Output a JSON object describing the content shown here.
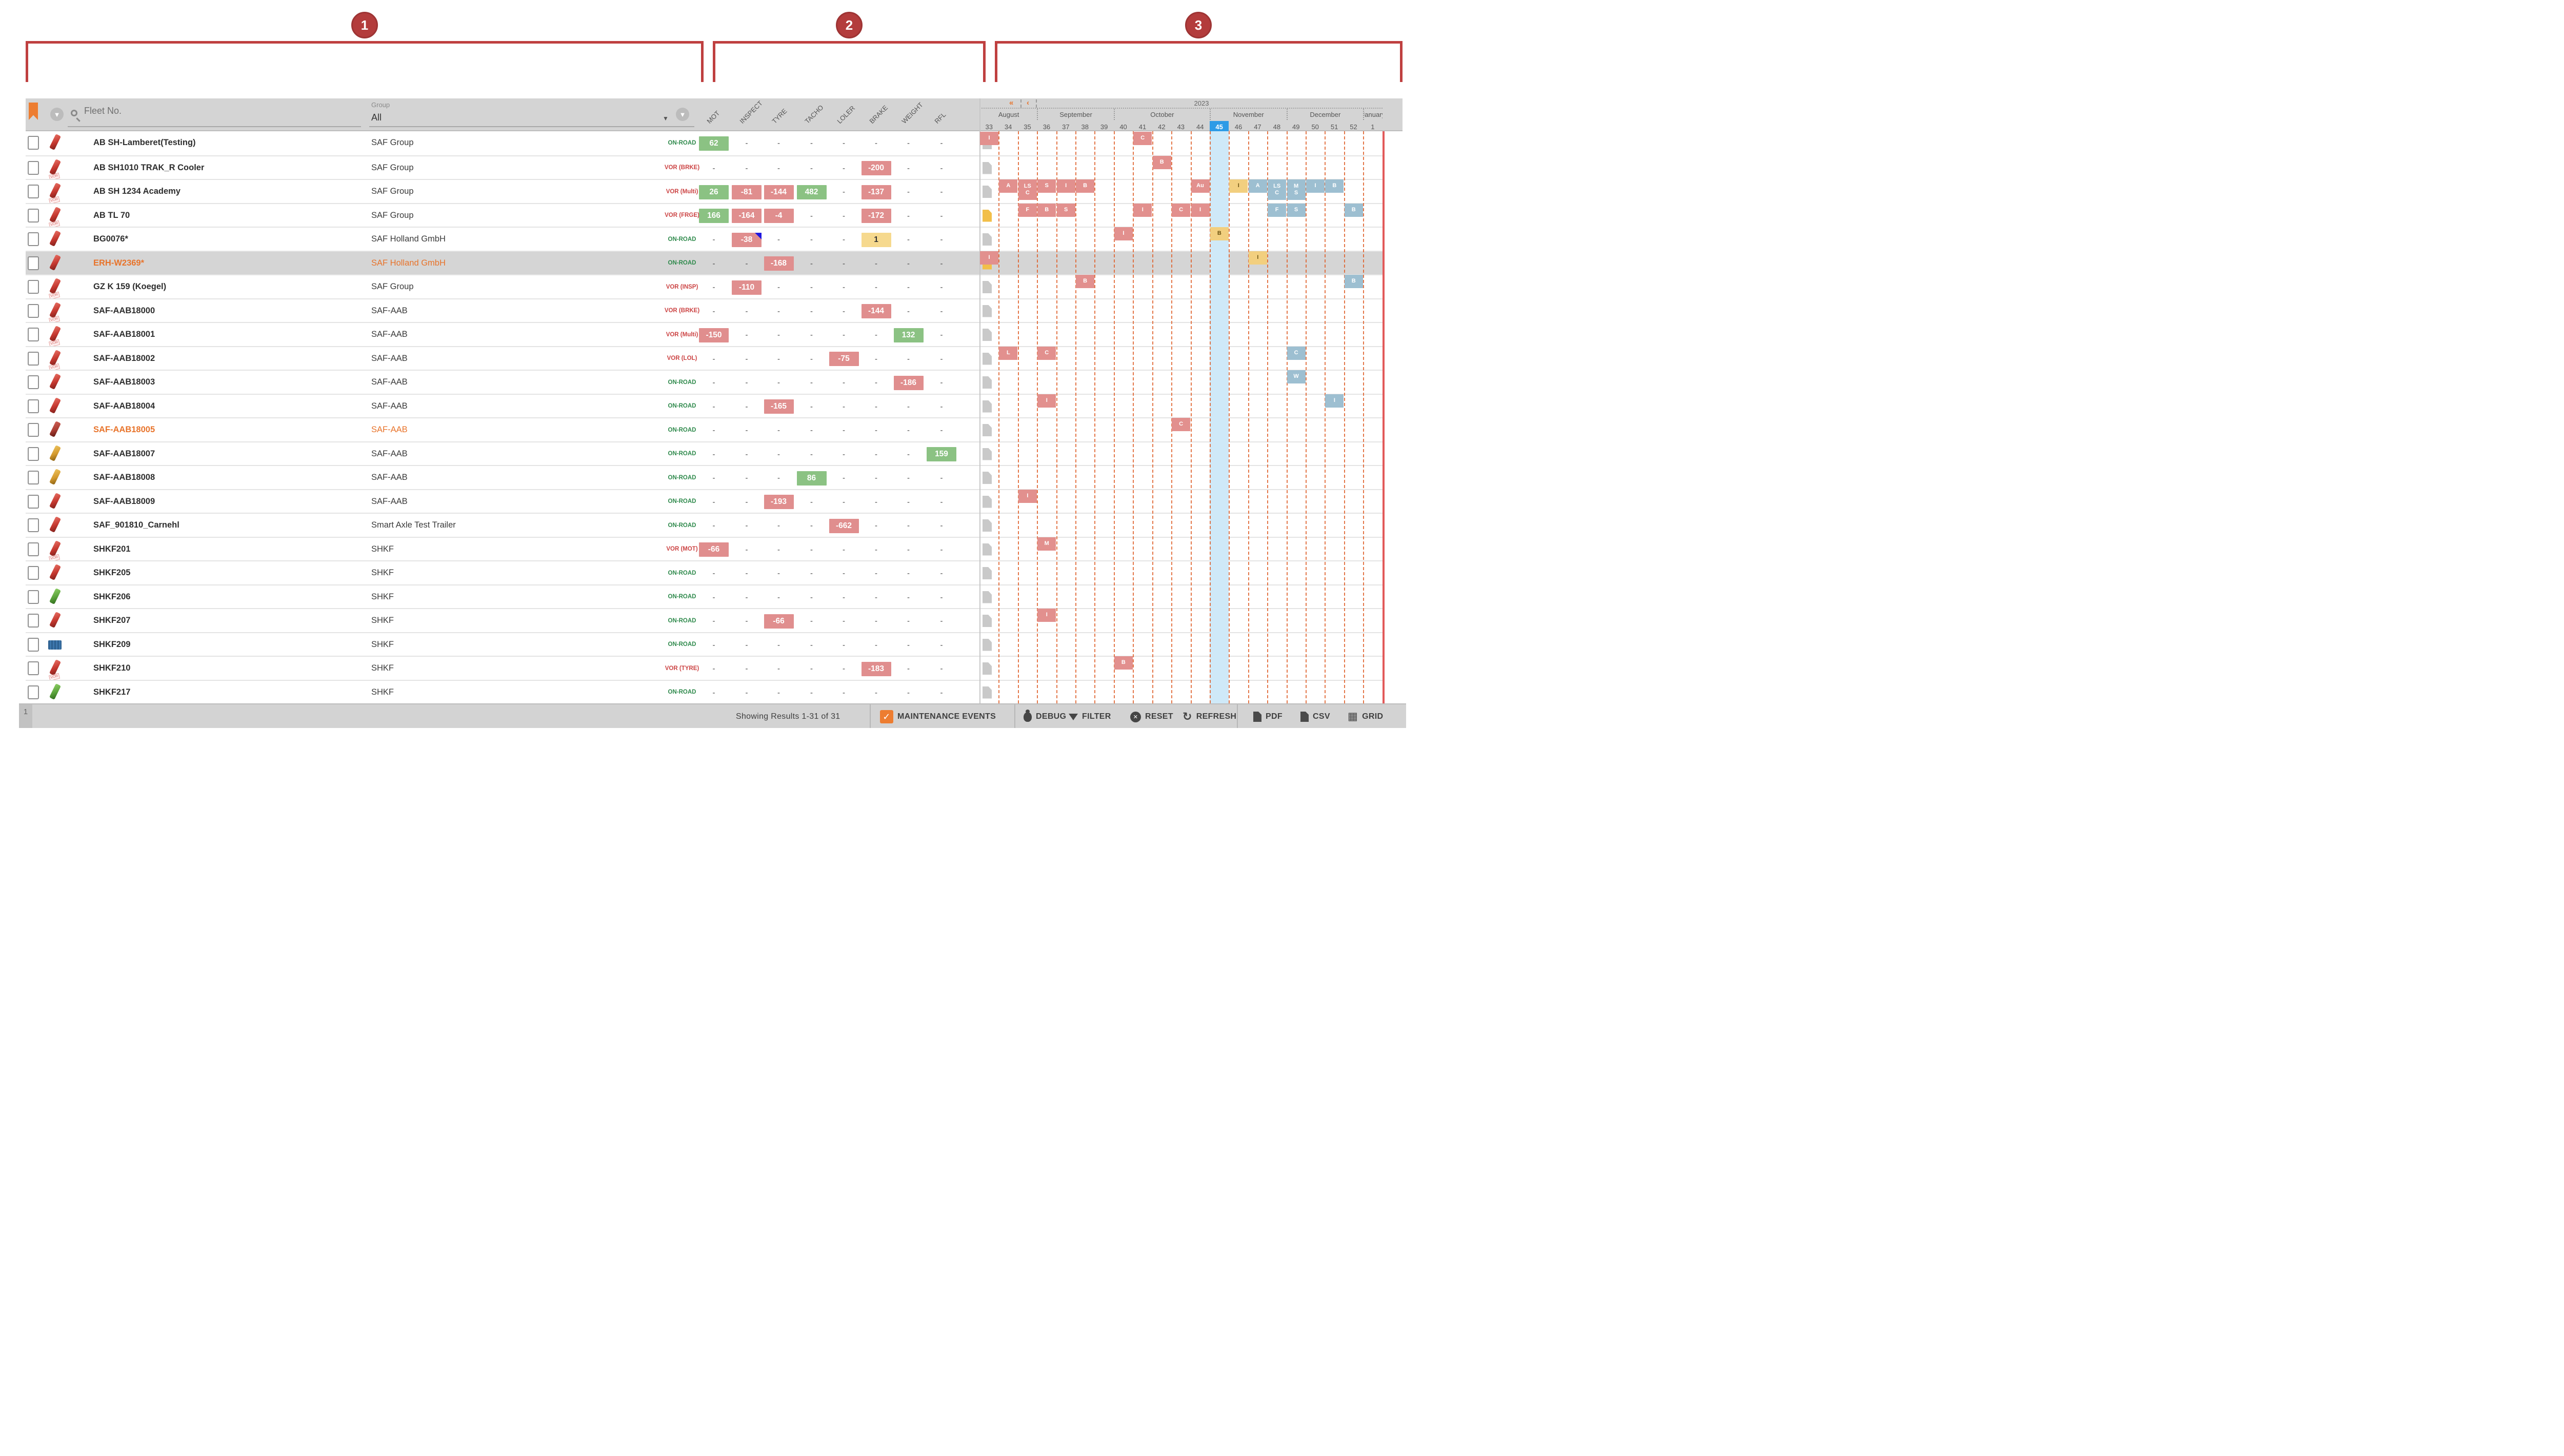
{
  "annotations": {
    "labels": [
      "1",
      "2",
      "3"
    ],
    "color": "#bf4040"
  },
  "table": {
    "search_placeholder": "Fleet No.",
    "group_label": "Group",
    "group_value": "All",
    "status_columns": [
      "MOT",
      "INSPECT",
      "TYRE",
      "TACHO",
      "LOLER",
      "BRAKE",
      "WEIGHT",
      "RFL"
    ],
    "rows": [
      {
        "n": "AB SH-Lamberet(Testing)",
        "g": "SAF Group",
        "s": "ON-ROAD",
        "icon": "red",
        "stamp": false,
        "doc": "gray",
        "sel": false,
        "flag": false,
        "v": [
          {
            "v": "62",
            "c": "g"
          },
          null,
          null,
          null,
          null,
          null,
          null,
          null
        ]
      },
      {
        "n": "AB SH1010 TRAK_R Cooler",
        "g": "SAF Group",
        "s": "VOR (BRKE)",
        "icon": "red",
        "stamp": true,
        "doc": "gray",
        "sel": false,
        "flag": false,
        "v": [
          null,
          null,
          null,
          null,
          null,
          {
            "v": "-200",
            "c": "r"
          },
          null,
          null
        ]
      },
      {
        "n": "AB SH 1234 Academy",
        "g": "SAF Group",
        "s": "VOR (Multi)",
        "icon": "red",
        "stamp": true,
        "doc": "gray",
        "sel": false,
        "flag": false,
        "v": [
          {
            "v": "26",
            "c": "g"
          },
          {
            "v": "-81",
            "c": "r"
          },
          {
            "v": "-144",
            "c": "r"
          },
          {
            "v": "482",
            "c": "g"
          },
          null,
          {
            "v": "-137",
            "c": "r"
          },
          null,
          null
        ]
      },
      {
        "n": "AB TL 70",
        "g": "SAF Group",
        "s": "VOR (FRGE)",
        "icon": "red",
        "stamp": true,
        "doc": "yellow",
        "sel": false,
        "flag": false,
        "v": [
          {
            "v": "166",
            "c": "g"
          },
          {
            "v": "-164",
            "c": "r"
          },
          {
            "v": "-4",
            "c": "r"
          },
          null,
          null,
          {
            "v": "-172",
            "c": "r"
          },
          null,
          null
        ]
      },
      {
        "n": "BG0076*",
        "g": "SAF Holland GmbH",
        "s": "ON-ROAD",
        "icon": "red",
        "stamp": false,
        "doc": "gray",
        "sel": false,
        "flag": false,
        "v": [
          null,
          {
            "v": "-38",
            "c": "r",
            "flag": true
          },
          null,
          null,
          null,
          {
            "v": "1",
            "c": "y"
          },
          null,
          null
        ]
      },
      {
        "n": "ERH-W2369*",
        "g": "SAF Holland GmbH",
        "s": "ON-ROAD",
        "icon": "red",
        "stamp": false,
        "doc": "yellow",
        "sel": true,
        "flag": true,
        "v": [
          null,
          null,
          {
            "v": "-168",
            "c": "r"
          },
          null,
          null,
          null,
          null,
          null
        ]
      },
      {
        "n": "GZ K 159 (Koegel)",
        "g": "SAF Group",
        "s": "VOR (INSP)",
        "icon": "red",
        "stamp": true,
        "doc": "gray",
        "sel": false,
        "flag": false,
        "v": [
          null,
          {
            "v": "-110",
            "c": "r"
          },
          null,
          null,
          null,
          null,
          null,
          null
        ]
      },
      {
        "n": "SAF-AAB18000",
        "g": "SAF-AAB",
        "s": "VOR (BRKE)",
        "icon": "red",
        "stamp": true,
        "doc": "gray",
        "sel": false,
        "flag": false,
        "v": [
          null,
          null,
          null,
          null,
          null,
          {
            "v": "-144",
            "c": "r"
          },
          null,
          null
        ]
      },
      {
        "n": "SAF-AAB18001",
        "g": "SAF-AAB",
        "s": "VOR (Multi)",
        "icon": "red",
        "stamp": true,
        "doc": "gray",
        "sel": false,
        "flag": false,
        "v": [
          {
            "v": "-150",
            "c": "r"
          },
          null,
          null,
          null,
          null,
          null,
          {
            "v": "132",
            "c": "g"
          },
          null
        ]
      },
      {
        "n": "SAF-AAB18002",
        "g": "SAF-AAB",
        "s": "VOR (LOL)",
        "icon": "red",
        "stamp": true,
        "doc": "gray",
        "sel": false,
        "flag": false,
        "v": [
          null,
          null,
          null,
          null,
          {
            "v": "-75",
            "c": "r"
          },
          null,
          null,
          null
        ]
      },
      {
        "n": "SAF-AAB18003",
        "g": "SAF-AAB",
        "s": "ON-ROAD",
        "icon": "red",
        "stamp": false,
        "doc": "gray",
        "sel": false,
        "flag": false,
        "v": [
          null,
          null,
          null,
          null,
          null,
          null,
          {
            "v": "-186",
            "c": "r"
          },
          null
        ]
      },
      {
        "n": "SAF-AAB18004",
        "g": "SAF-AAB",
        "s": "ON-ROAD",
        "icon": "red",
        "stamp": false,
        "doc": "gray",
        "sel": false,
        "flag": false,
        "v": [
          null,
          null,
          {
            "v": "-165",
            "c": "r"
          },
          null,
          null,
          null,
          null,
          null
        ]
      },
      {
        "n": "SAF-AAB18005",
        "g": "SAF-AAB",
        "s": "ON-ROAD",
        "icon": "darkred",
        "stamp": false,
        "doc": "gray",
        "sel": false,
        "flag": true,
        "v": [
          null,
          null,
          null,
          null,
          null,
          null,
          null,
          null
        ]
      },
      {
        "n": "SAF-AAB18007",
        "g": "SAF-AAB",
        "s": "ON-ROAD",
        "icon": "yellow",
        "stamp": false,
        "doc": "gray",
        "sel": false,
        "flag": false,
        "v": [
          null,
          null,
          null,
          null,
          null,
          null,
          null,
          {
            "v": "159",
            "c": "g"
          }
        ]
      },
      {
        "n": "SAF-AAB18008",
        "g": "SAF-AAB",
        "s": "ON-ROAD",
        "icon": "yellow",
        "stamp": false,
        "doc": "gray",
        "sel": false,
        "flag": false,
        "v": [
          null,
          null,
          null,
          {
            "v": "86",
            "c": "g"
          },
          null,
          null,
          null,
          null
        ]
      },
      {
        "n": "SAF-AAB18009",
        "g": "SAF-AAB",
        "s": "ON-ROAD",
        "icon": "red",
        "stamp": false,
        "doc": "gray",
        "sel": false,
        "flag": false,
        "v": [
          null,
          null,
          {
            "v": "-193",
            "c": "r"
          },
          null,
          null,
          null,
          null,
          null
        ]
      },
      {
        "n": "SAF_901810_Carnehl",
        "g": "Smart Axle Test Trailer",
        "s": "ON-ROAD",
        "icon": "red",
        "stamp": false,
        "doc": "gray",
        "sel": false,
        "flag": false,
        "v": [
          null,
          null,
          null,
          null,
          {
            "v": "-662",
            "c": "r"
          },
          null,
          null,
          null
        ]
      },
      {
        "n": "SHKF201",
        "g": "SHKF",
        "s": "VOR (MOT)",
        "icon": "red",
        "stamp": true,
        "doc": "gray",
        "sel": false,
        "flag": false,
        "v": [
          {
            "v": "-66",
            "c": "r"
          },
          null,
          null,
          null,
          null,
          null,
          null,
          null
        ]
      },
      {
        "n": "SHKF205",
        "g": "SHKF",
        "s": "ON-ROAD",
        "icon": "red",
        "stamp": false,
        "doc": "gray",
        "sel": false,
        "flag": false,
        "v": [
          null,
          null,
          null,
          null,
          null,
          null,
          null,
          null
        ]
      },
      {
        "n": "SHKF206",
        "g": "SHKF",
        "s": "ON-ROAD",
        "icon": "green",
        "stamp": false,
        "doc": "gray",
        "sel": false,
        "flag": false,
        "v": [
          null,
          null,
          null,
          null,
          null,
          null,
          null,
          null
        ]
      },
      {
        "n": "SHKF207",
        "g": "SHKF",
        "s": "ON-ROAD",
        "icon": "red",
        "stamp": false,
        "doc": "gray",
        "sel": false,
        "flag": false,
        "v": [
          null,
          null,
          {
            "v": "-66",
            "c": "r"
          },
          null,
          null,
          null,
          null,
          null
        ]
      },
      {
        "n": "SHKF209",
        "g": "SHKF",
        "s": "ON-ROAD",
        "icon": "blue",
        "stamp": false,
        "doc": "gray",
        "sel": false,
        "flag": false,
        "v": [
          null,
          null,
          null,
          null,
          null,
          null,
          null,
          null
        ]
      },
      {
        "n": "SHKF210",
        "g": "SHKF",
        "s": "VOR (TYRE)",
        "icon": "red",
        "stamp": true,
        "doc": "gray",
        "sel": false,
        "flag": false,
        "v": [
          null,
          null,
          null,
          null,
          null,
          {
            "v": "-183",
            "c": "r"
          },
          null,
          null
        ]
      },
      {
        "n": "SHKF217",
        "g": "SHKF",
        "s": "ON-ROAD",
        "icon": "green",
        "stamp": false,
        "doc": "gray",
        "sel": false,
        "flag": false,
        "v": [
          null,
          null,
          null,
          null,
          null,
          null,
          null,
          null
        ]
      }
    ]
  },
  "timeline": {
    "year": "2023",
    "nav": {
      "first": "«",
      "prev": "‹",
      "next": "›",
      "last": "»"
    },
    "months": [
      {
        "name": "August",
        "weeks": 3
      },
      {
        "name": "September",
        "weeks": 4
      },
      {
        "name": "October",
        "weeks": 5
      },
      {
        "name": "November",
        "weeks": 4
      },
      {
        "name": "December",
        "weeks": 4
      },
      {
        "name": "January",
        "weeks": 1
      }
    ],
    "weeks": [
      "33",
      "34",
      "35",
      "36",
      "37",
      "38",
      "39",
      "40",
      "41",
      "42",
      "43",
      "44",
      "45",
      "46",
      "47",
      "48",
      "49",
      "50",
      "51",
      "52",
      "1"
    ],
    "current_week": "45",
    "marker_colors": {
      "r": "#e2908e",
      "b": "#9dbfd1",
      "y": "#f2cf7f"
    },
    "markers": [
      {
        "r": 1,
        "w": "33",
        "c": "r",
        "t": "I"
      },
      {
        "r": 1,
        "w": "41",
        "c": "r",
        "t": "C"
      },
      {
        "r": 2,
        "w": "42",
        "c": "r",
        "t": "B"
      },
      {
        "r": 3,
        "w": "34",
        "c": "r",
        "t": "A"
      },
      {
        "r": 3,
        "w": "35",
        "c": "r",
        "t": "LS\nC"
      },
      {
        "r": 3,
        "w": "36",
        "c": "r",
        "t": "S"
      },
      {
        "r": 3,
        "w": "37",
        "c": "r",
        "t": "I"
      },
      {
        "r": 3,
        "w": "38",
        "c": "r",
        "t": "B"
      },
      {
        "r": 3,
        "w": "44",
        "c": "r",
        "t": "Au"
      },
      {
        "r": 3,
        "w": "46",
        "c": "y",
        "t": "I"
      },
      {
        "r": 3,
        "w": "47",
        "c": "b",
        "t": "A"
      },
      {
        "r": 3,
        "w": "48",
        "c": "b",
        "t": "LS\nC"
      },
      {
        "r": 3,
        "w": "49",
        "c": "b",
        "t": "M\nS"
      },
      {
        "r": 3,
        "w": "50",
        "c": "b",
        "t": "I"
      },
      {
        "r": 3,
        "w": "51",
        "c": "b",
        "t": "B"
      },
      {
        "r": 4,
        "w": "35",
        "c": "r",
        "t": "F"
      },
      {
        "r": 4,
        "w": "36",
        "c": "r",
        "t": "B"
      },
      {
        "r": 4,
        "w": "37",
        "c": "r",
        "t": "S"
      },
      {
        "r": 4,
        "w": "41",
        "c": "r",
        "t": "I"
      },
      {
        "r": 4,
        "w": "43",
        "c": "r",
        "t": "C"
      },
      {
        "r": 4,
        "w": "44",
        "c": "r",
        "t": "I"
      },
      {
        "r": 4,
        "w": "48",
        "c": "b",
        "t": "F"
      },
      {
        "r": 4,
        "w": "49",
        "c": "b",
        "t": "S"
      },
      {
        "r": 4,
        "w": "52",
        "c": "b",
        "t": "B"
      },
      {
        "r": 5,
        "w": "40",
        "c": "r",
        "t": "I"
      },
      {
        "r": 5,
        "w": "45",
        "c": "y",
        "t": "B"
      },
      {
        "r": 6,
        "w": "33",
        "c": "r",
        "t": "I"
      },
      {
        "r": 6,
        "w": "47",
        "c": "y",
        "t": "I"
      },
      {
        "r": 7,
        "w": "38",
        "c": "r",
        "t": "B"
      },
      {
        "r": 7,
        "w": "52",
        "c": "b",
        "t": "B"
      },
      {
        "r": 10,
        "w": "34",
        "c": "r",
        "t": "L"
      },
      {
        "r": 10,
        "w": "36",
        "c": "r",
        "t": "C"
      },
      {
        "r": 10,
        "w": "49",
        "c": "b",
        "t": "C"
      },
      {
        "r": 11,
        "w": "49",
        "c": "b",
        "t": "W"
      },
      {
        "r": 12,
        "w": "36",
        "c": "r",
        "t": "I"
      },
      {
        "r": 12,
        "w": "51",
        "c": "b",
        "t": "I"
      },
      {
        "r": 13,
        "w": "43",
        "c": "r",
        "t": "C"
      },
      {
        "r": 16,
        "w": "35",
        "c": "r",
        "t": "I"
      },
      {
        "r": 18,
        "w": "36",
        "c": "r",
        "t": "M"
      },
      {
        "r": 21,
        "w": "36",
        "c": "r",
        "t": "I"
      },
      {
        "r": 23,
        "w": "40",
        "c": "r",
        "t": "B"
      }
    ]
  },
  "badge_colors": {
    "green": "#8bc283",
    "red": "#e08e8e",
    "yellow": "#f6d98e",
    "accent": "#ed7d31",
    "current_week_blue": "#2e9be6"
  },
  "footer": {
    "page": "1",
    "results": "Showing Results 1-31 of 31",
    "maintenance_label": "MAINTENANCE EVENTS",
    "buttons": [
      "DEBUG",
      "FILTER",
      "RESET",
      "REFRESH",
      "PDF",
      "CSV",
      "GRID"
    ]
  }
}
